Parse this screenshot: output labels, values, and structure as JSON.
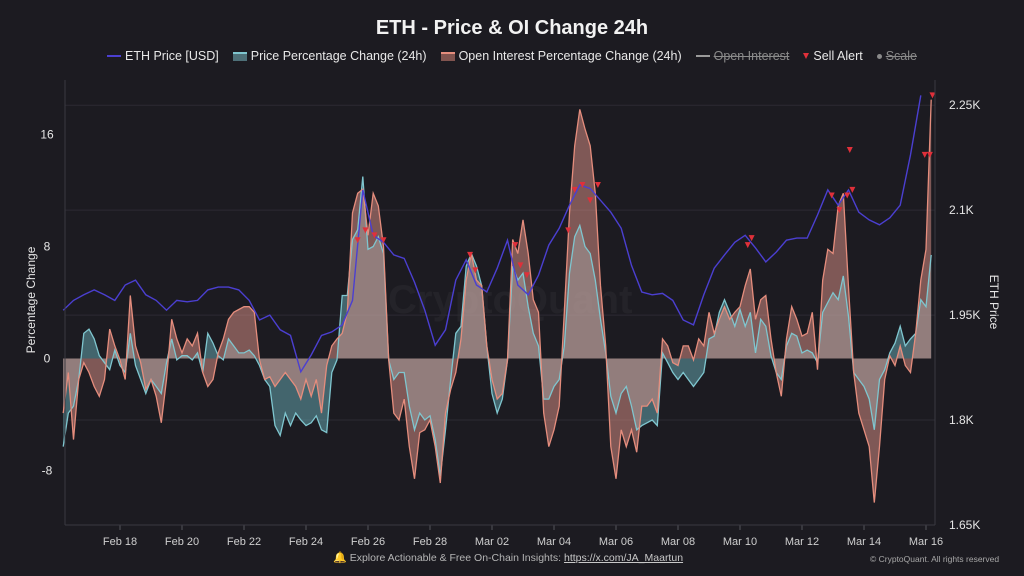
{
  "chart_data": {
    "type": "line",
    "title": "ETH - Price & OI Change 24h",
    "legend": [
      {
        "name": "ETH Price [USD]",
        "color": "#4b3fd1",
        "kind": "line",
        "enabled": true
      },
      {
        "name": "Price Percentage Change (24h)",
        "color": "#7fc6cf",
        "kind": "area",
        "enabled": true
      },
      {
        "name": "Open Interest Percentage Change (24h)",
        "color": "#e58d7d",
        "kind": "area",
        "enabled": true
      },
      {
        "name": "Open Interest",
        "color": "#9a9a9a",
        "kind": "line",
        "enabled": false
      },
      {
        "name": "Sell Alert",
        "color": "#e0303a",
        "kind": "marker",
        "enabled": true
      },
      {
        "name": "Scale",
        "color": "#8a8a8a",
        "kind": "marker",
        "enabled": false
      }
    ],
    "legend_position": "top",
    "ylabel_left": "Percentage Change",
    "ylabel_right": "ETH Price",
    "yticks_left": [
      "16",
      "8",
      "0",
      "-8"
    ],
    "yticks_left_values": [
      16,
      8,
      0,
      -8
    ],
    "ylim_left": [
      -11.9,
      19.9
    ],
    "yticks_right": [
      "2.25K",
      "2.1K",
      "1.95K",
      "1.8K",
      "1.65K"
    ],
    "yticks_right_values": [
      2250,
      2100,
      1950,
      1800,
      1650
    ],
    "ylim_right": [
      1650,
      2286
    ],
    "xticks": [
      "Feb 18",
      "Feb 20",
      "Feb 22",
      "Feb 24",
      "Feb 26",
      "Feb 28",
      "Mar 02",
      "Mar 04",
      "Mar 06",
      "Mar 08",
      "Mar 10",
      "Mar 12",
      "Mar 14",
      "Mar 16"
    ],
    "xticks_dates": [
      "Feb 18 00:00",
      "Feb 20 00:00",
      "Feb 22 00:00",
      "Feb 24 00:00",
      "Feb 26 00:00",
      "Feb 28 00:00",
      "Mar 02 00:00",
      "Mar 04 00:00",
      "Mar 06 00:00",
      "Mar 08 00:00",
      "Mar 10 00:00",
      "Mar 12 00:00",
      "Mar 14 00:00",
      "Mar 16 00:00"
    ],
    "xlim": [
      "Feb 16 04:00",
      "Mar 16 06:00"
    ],
    "grid": "horizontal",
    "eth_price": {
      "name": "ETH Price [USD]",
      "start": "Feb 16 04:00",
      "interval_hours": 8,
      "values": [
        1957,
        1971,
        1979,
        1986,
        1979,
        1971,
        1993,
        2000,
        1979,
        1971,
        1957,
        1971,
        1969,
        1971,
        1986,
        1990,
        1990,
        1986,
        1971,
        1943,
        1950,
        1929,
        1921,
        1869,
        1893,
        1921,
        1926,
        1936,
        1971,
        2129,
        2064,
        2054,
        2036,
        2031,
        1997,
        1957,
        1907,
        1929,
        2000,
        2029,
        1993,
        1983,
        2017,
        2057,
        1993,
        1979,
        2007,
        2050,
        2074,
        2107,
        2136,
        2131,
        2114,
        2097,
        2074,
        2021,
        1983,
        1979,
        1981,
        1971,
        1943,
        1936,
        1979,
        2017,
        2036,
        2054,
        2064,
        2046,
        2026,
        2040,
        2057,
        2060,
        2060,
        2093,
        2129,
        2107,
        2129,
        2097,
        2086,
        2079,
        2089,
        2107,
        2179,
        2264
      ]
    },
    "price_pct_change": {
      "name": "Price Percentage Change (24h)",
      "start": "Feb 16 04:00",
      "interval_hours": 4,
      "values": [
        -6.3,
        -3.9,
        -3.4,
        -1.5,
        1.8,
        2.1,
        1.4,
        0.2,
        -0.3,
        -0.8,
        0.6,
        -0.5,
        -1.0,
        1.8,
        -0.5,
        -1.5,
        -2.5,
        -1.5,
        -2.0,
        -2.5,
        -0.3,
        1.4,
        -0.1,
        0.2,
        0.2,
        -0.1,
        0.4,
        -1.0,
        1.8,
        1.1,
        0.2,
        -0.1,
        1.4,
        0.9,
        0.4,
        0.4,
        0.6,
        0.2,
        -0.5,
        -1.5,
        -2.0,
        -4.8,
        -5.5,
        -3.9,
        -4.8,
        -3.9,
        -4.4,
        -4.8,
        -4.6,
        -4.1,
        -5.1,
        -5.3,
        -1.0,
        -0.1,
        4.5,
        4.5,
        8.5,
        9.2,
        13.0,
        7.8,
        8.0,
        8.7,
        7.5,
        -0.1,
        -1.5,
        -1.0,
        -1.0,
        -3.4,
        -5.1,
        -3.9,
        -4.4,
        -4.1,
        -5.8,
        -8.4,
        -5.1,
        -1.5,
        1.8,
        2.3,
        6.6,
        7.5,
        6.6,
        5.2,
        0.9,
        -2.5,
        -3.9,
        -2.9,
        -0.1,
        6.6,
        5.6,
        6.1,
        3.7,
        1.8,
        0.9,
        -2.9,
        -2.9,
        -2.0,
        -1.5,
        0.9,
        6.1,
        8.7,
        9.5,
        8.0,
        7.5,
        5.6,
        2.8,
        0.4,
        -2.7,
        -3.9,
        -2.5,
        -2.0,
        -3.4,
        -5.1,
        -4.8,
        -4.6,
        -4.4,
        -4.8,
        0.4,
        -0.3,
        -1.0,
        -1.5,
        -1.0,
        -1.5,
        -2.0,
        -1.5,
        -1.0,
        1.4,
        1.6,
        3.3,
        4.2,
        3.3,
        2.3,
        3.5,
        2.3,
        3.3,
        0.4,
        2.8,
        2.3,
        0.2,
        -1.0,
        -1.5,
        0.9,
        1.8,
        1.6,
        0.4,
        0.6,
        0.4,
        -0.3,
        3.3,
        4.0,
        4.7,
        4.2,
        5.9,
        3.0,
        -1.0,
        -1.5,
        -2.0,
        -2.9,
        -5.1,
        -1.5,
        -0.8,
        0.4,
        1.1,
        2.3,
        0.9,
        1.4,
        1.8,
        4.2,
        3.7,
        7.4
      ]
    },
    "oi_pct_change": {
      "name": "Open Interest Percentage Change (24h)",
      "start": "Feb 16 04:00",
      "interval_hours": 4,
      "values": [
        -3.9,
        -1.0,
        -5.8,
        -1.5,
        -0.3,
        -1.0,
        -2.0,
        -2.7,
        -1.5,
        2.1,
        0.9,
        -0.1,
        -1.5,
        4.5,
        0.9,
        -0.3,
        -2.2,
        -1.5,
        -2.7,
        -4.6,
        -1.5,
        2.8,
        1.4,
        0.4,
        1.4,
        0.9,
        1.8,
        -1.0,
        -2.0,
        -1.5,
        0.4,
        1.4,
        2.8,
        3.3,
        3.5,
        3.7,
        3.7,
        3.3,
        -0.1,
        -1.5,
        -1.3,
        -2.0,
        -1.5,
        -1.0,
        -1.5,
        -2.0,
        -2.9,
        -1.5,
        -2.7,
        -1.5,
        -3.9,
        -0.5,
        0.9,
        1.4,
        1.8,
        3.3,
        10.4,
        11.8,
        12.1,
        8.8,
        11.8,
        10.9,
        8.0,
        -0.1,
        -3.9,
        -4.4,
        -2.9,
        -6.3,
        -8.6,
        -5.3,
        -5.1,
        -4.4,
        -6.3,
        -8.9,
        -3.9,
        -2.2,
        -1.0,
        1.4,
        5.6,
        7.5,
        5.6,
        5.2,
        0.9,
        -1.5,
        -2.9,
        -2.5,
        -0.1,
        8.5,
        7.5,
        9.9,
        7.5,
        4.2,
        3.3,
        -3.9,
        -6.3,
        -5.1,
        -3.4,
        3.3,
        10.4,
        15.2,
        17.8,
        16.4,
        15.2,
        11.8,
        5.2,
        0.9,
        -6.3,
        -8.6,
        -5.1,
        -6.3,
        -5.1,
        -6.7,
        -3.4,
        -3.4,
        -2.9,
        -3.9,
        1.4,
        0.9,
        -0.3,
        -0.5,
        0.9,
        0.9,
        -0.1,
        1.4,
        0.9,
        3.3,
        1.8,
        2.8,
        3.7,
        2.8,
        3.3,
        3.7,
        5.2,
        6.4,
        2.8,
        4.2,
        4.5,
        1.4,
        -1.0,
        -2.7,
        1.4,
        3.7,
        2.8,
        1.6,
        1.8,
        3.3,
        -0.8,
        5.6,
        7.8,
        7.5,
        10.9,
        11.8,
        5.1,
        -1.0,
        -3.9,
        -5.1,
        -6.3,
        -10.3,
        -6.3,
        -1.5,
        0.2,
        -0.5,
        0.9,
        -0.5,
        -1.0,
        1.8,
        5.6,
        7.8,
        18.5
      ]
    },
    "sell_alerts": [
      {
        "date": "Feb 25 16:00",
        "price": 2057
      },
      {
        "date": "Feb 25 22:00",
        "price": 2071
      },
      {
        "date": "Feb 26 05:00",
        "price": 2064
      },
      {
        "date": "Feb 26 12:00",
        "price": 2057
      },
      {
        "date": "Mar 01 07:00",
        "price": 2036
      },
      {
        "date": "Mar 01 11:00",
        "price": 2014
      },
      {
        "date": "Mar 02 18:00",
        "price": 2050
      },
      {
        "date": "Mar 02 22:00",
        "price": 2021
      },
      {
        "date": "Mar 03 03:00",
        "price": 2007
      },
      {
        "date": "Mar 04 11:00",
        "price": 2071
      },
      {
        "date": "Mar 04 16:00",
        "price": 2129
      },
      {
        "date": "Mar 04 22:00",
        "price": 2136
      },
      {
        "date": "Mar 05 04:00",
        "price": 2114
      },
      {
        "date": "Mar 05 10:00",
        "price": 2136
      },
      {
        "date": "Mar 10 06:00",
        "price": 2050
      },
      {
        "date": "Mar 10 09:00",
        "price": 2060
      },
      {
        "date": "Mar 12 23:00",
        "price": 2121
      },
      {
        "date": "Mar 13 05:00",
        "price": 2100
      },
      {
        "date": "Mar 13 11:00",
        "price": 2121
      },
      {
        "date": "Mar 13 13:00",
        "price": 2186
      },
      {
        "date": "Mar 13 15:00",
        "price": 2129
      },
      {
        "date": "Mar 15 23:00",
        "price": 2179
      },
      {
        "date": "Mar 16 03:00",
        "price": 2179
      },
      {
        "date": "Mar 16 05:00",
        "price": 2264
      }
    ]
  },
  "watermark": "CryptoQuant",
  "footer": {
    "icon": "bell-icon",
    "text": "Explore Actionable & Free On-Chain Insights:",
    "link": "https://x.com/JA_Maartun",
    "copyright": "© CryptoQuant. All rights reserved"
  },
  "colors": {
    "background": "#1c1b21",
    "eth_price": "#4b3fd1",
    "price_pct": "#7fc6cf",
    "oi_pct": "#e58d7d",
    "sell_alert": "#e0303a"
  }
}
